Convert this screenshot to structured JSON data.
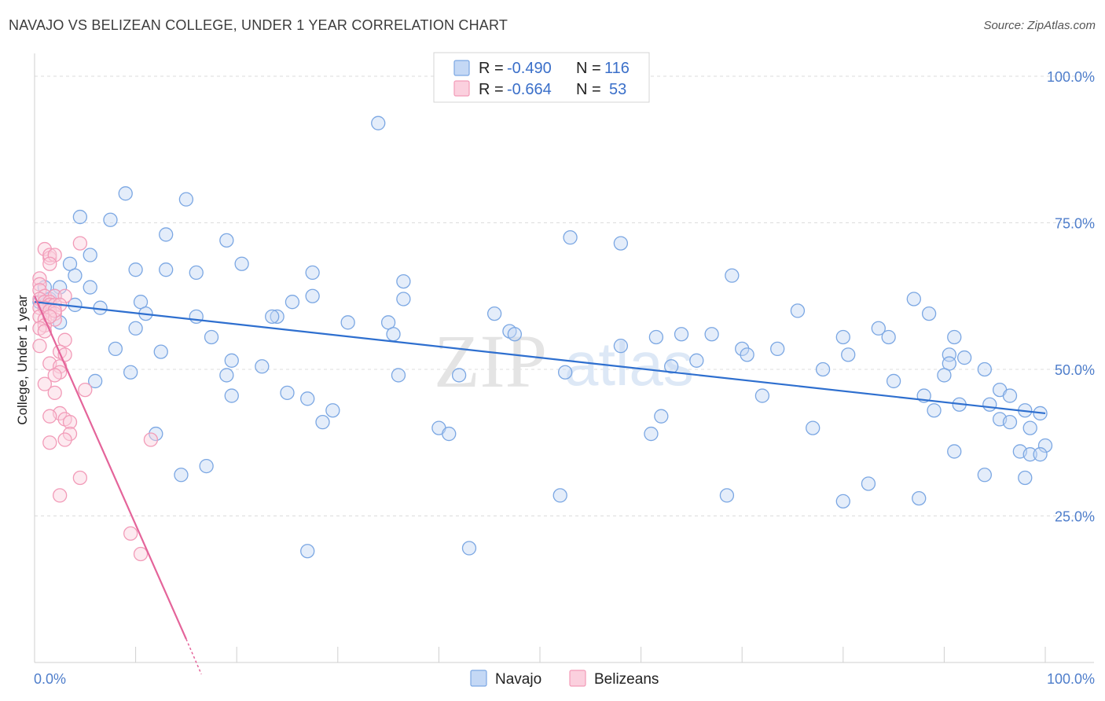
{
  "header": {
    "title": "NAVAJO VS BELIZEAN COLLEGE, UNDER 1 YEAR CORRELATION CHART",
    "source": "Source: ZipAtlas.com"
  },
  "watermark": {
    "zip": "ZIP",
    "atlas": "atlas"
  },
  "legend": {
    "rows": [
      {
        "r_label": "R = ",
        "r_value": "-0.490",
        "n_label": "N = ",
        "n_value": "116"
      },
      {
        "r_label": "R = ",
        "r_value": "-0.664",
        "n_label": "N = ",
        "n_value": "53"
      }
    ]
  },
  "chart_data": {
    "type": "scatter",
    "title": "NAVAJO VS BELIZEAN COLLEGE, UNDER 1 YEAR CORRELATION CHART",
    "ylabel": "College, Under 1 year",
    "xlabel": "",
    "xlim": [
      0,
      100
    ],
    "ylim": [
      0,
      100
    ],
    "x_tick_labels": [
      {
        "value": 0,
        "label": "0.0%"
      },
      {
        "value": 100,
        "label": "100.0%"
      }
    ],
    "y_tick_labels": [
      {
        "value": 25,
        "label": "25.0%"
      },
      {
        "value": 50,
        "label": "50.0%"
      },
      {
        "value": 75,
        "label": "75.0%"
      },
      {
        "value": 100,
        "label": "100.0%"
      }
    ],
    "grid": true,
    "legend_position": "top-center",
    "colors": {
      "navajo": "#7ba7e3",
      "navajo_line": "#2e6fcf",
      "belizeans": "#f29bb8",
      "belizeans_line": "#e4649a"
    },
    "series": [
      {
        "name": "Navajo",
        "R": -0.49,
        "N": 116,
        "trend": {
          "x0": 0,
          "y0": 61.5,
          "x1": 100,
          "y1": 42.5
        },
        "points": [
          [
            34,
            92
          ],
          [
            9,
            80
          ],
          [
            15,
            79
          ],
          [
            4.5,
            76
          ],
          [
            7.5,
            75.5
          ],
          [
            13,
            73
          ],
          [
            19,
            72
          ],
          [
            53,
            72.5
          ],
          [
            58,
            71.5
          ],
          [
            5.5,
            69.5
          ],
          [
            20.5,
            68
          ],
          [
            3.5,
            68
          ],
          [
            10,
            67
          ],
          [
            13,
            67
          ],
          [
            16,
            66.5
          ],
          [
            27.5,
            66.5
          ],
          [
            4,
            66
          ],
          [
            36.5,
            65
          ],
          [
            69,
            66
          ],
          [
            1,
            64
          ],
          [
            2.5,
            64
          ],
          [
            5.5,
            64
          ],
          [
            1.5,
            62
          ],
          [
            2,
            62.5
          ],
          [
            27.5,
            62.5
          ],
          [
            36.5,
            62
          ],
          [
            87,
            62
          ],
          [
            0.5,
            61.5
          ],
          [
            1,
            61
          ],
          [
            10.5,
            61.5
          ],
          [
            25.5,
            61.5
          ],
          [
            4,
            61
          ],
          [
            6.5,
            60.5
          ],
          [
            75.5,
            60
          ],
          [
            45.5,
            59.5
          ],
          [
            11,
            59.5
          ],
          [
            16,
            59
          ],
          [
            24,
            59
          ],
          [
            23.5,
            59
          ],
          [
            88.5,
            59.5
          ],
          [
            31,
            58
          ],
          [
            35,
            58
          ],
          [
            2.5,
            58
          ],
          [
            10,
            57
          ],
          [
            47,
            56.5
          ],
          [
            47.5,
            56
          ],
          [
            35.5,
            56
          ],
          [
            83.5,
            57
          ],
          [
            17.5,
            55.5
          ],
          [
            61.5,
            55.5
          ],
          [
            64,
            56
          ],
          [
            67,
            56
          ],
          [
            80,
            55.5
          ],
          [
            84.5,
            55.5
          ],
          [
            91,
            55.5
          ],
          [
            8,
            53.5
          ],
          [
            12.5,
            53
          ],
          [
            58,
            54
          ],
          [
            70,
            53.5
          ],
          [
            73.5,
            53.5
          ],
          [
            70.5,
            52.5
          ],
          [
            80.5,
            52.5
          ],
          [
            90.5,
            52.5
          ],
          [
            92,
            52
          ],
          [
            19.5,
            51.5
          ],
          [
            22.5,
            50.5
          ],
          [
            65.5,
            51.5
          ],
          [
            63,
            50.5
          ],
          [
            78,
            50
          ],
          [
            90.5,
            51
          ],
          [
            94,
            50
          ],
          [
            9.5,
            49.5
          ],
          [
            19,
            49
          ],
          [
            36,
            49
          ],
          [
            42,
            49
          ],
          [
            52.5,
            49.5
          ],
          [
            85,
            48
          ],
          [
            90,
            49
          ],
          [
            6,
            48
          ],
          [
            95.5,
            46.5
          ],
          [
            25,
            46
          ],
          [
            19.5,
            45.5
          ],
          [
            27,
            45
          ],
          [
            72,
            45.5
          ],
          [
            88,
            45.5
          ],
          [
            96.5,
            45.5
          ],
          [
            91.5,
            44
          ],
          [
            94.5,
            44
          ],
          [
            29.5,
            43
          ],
          [
            89,
            43
          ],
          [
            98,
            43
          ],
          [
            99.5,
            42.5
          ],
          [
            62,
            42
          ],
          [
            95.5,
            41.5
          ],
          [
            96.5,
            41
          ],
          [
            28.5,
            41
          ],
          [
            40,
            40
          ],
          [
            77,
            40
          ],
          [
            98.5,
            40
          ],
          [
            41,
            39
          ],
          [
            61,
            39
          ],
          [
            12,
            39
          ],
          [
            100,
            37
          ],
          [
            91,
            36
          ],
          [
            97.5,
            36
          ],
          [
            98.5,
            35.5
          ],
          [
            99.5,
            35.5
          ],
          [
            17,
            33.5
          ],
          [
            14.5,
            32
          ],
          [
            94,
            32
          ],
          [
            98,
            31.5
          ],
          [
            82.5,
            30.5
          ],
          [
            52,
            28.5
          ],
          [
            68.5,
            28.5
          ],
          [
            87.5,
            28
          ],
          [
            80,
            27.5
          ],
          [
            27,
            19
          ],
          [
            43,
            19.5
          ]
        ]
      },
      {
        "name": "Belizeans",
        "R": -0.664,
        "N": 53,
        "trend": {
          "x0": 0,
          "y0": 62.5,
          "x1": 15,
          "y1": 4
        },
        "trend_dashed": {
          "x0": 15,
          "y0": 4,
          "x1": 16.5,
          "y1": -2
        },
        "points": [
          [
            4.5,
            71.5
          ],
          [
            1,
            70.5
          ],
          [
            1.5,
            69
          ],
          [
            1.5,
            69.5
          ],
          [
            2,
            69.5
          ],
          [
            1.5,
            68
          ],
          [
            0.5,
            65.5
          ],
          [
            0.5,
            64.5
          ],
          [
            0.5,
            63.5
          ],
          [
            1,
            62.5
          ],
          [
            2,
            62.5
          ],
          [
            3,
            62.5
          ],
          [
            0.5,
            62
          ],
          [
            1,
            61.5
          ],
          [
            1.5,
            61.5
          ],
          [
            1.5,
            61
          ],
          [
            2,
            61
          ],
          [
            2.5,
            61
          ],
          [
            0.5,
            60.5
          ],
          [
            1,
            60.5
          ],
          [
            1.5,
            60
          ],
          [
            2,
            59.5
          ],
          [
            0.5,
            59
          ],
          [
            1,
            58.5
          ],
          [
            2,
            58.5
          ],
          [
            1,
            57.5
          ],
          [
            0.5,
            57
          ],
          [
            1,
            56.5
          ],
          [
            3,
            55
          ],
          [
            0.5,
            54
          ],
          [
            2.5,
            53
          ],
          [
            3,
            52.5
          ],
          [
            1.5,
            51
          ],
          [
            2.5,
            50.5
          ],
          [
            2.5,
            49.5
          ],
          [
            2,
            49
          ],
          [
            1,
            47.5
          ],
          [
            2,
            46
          ],
          [
            5,
            46.5
          ],
          [
            2.5,
            42.5
          ],
          [
            1.5,
            42
          ],
          [
            3,
            41.5
          ],
          [
            3.5,
            41
          ],
          [
            3.5,
            39
          ],
          [
            3,
            38
          ],
          [
            11.5,
            38
          ],
          [
            1.5,
            37.5
          ],
          [
            4.5,
            31.5
          ],
          [
            2.5,
            28.5
          ],
          [
            9.5,
            22
          ],
          [
            10.5,
            18.5
          ],
          [
            2,
            60
          ],
          [
            1.5,
            59
          ]
        ]
      }
    ]
  },
  "bottom_legend": {
    "items": [
      "Navajo",
      "Belizeans"
    ]
  }
}
